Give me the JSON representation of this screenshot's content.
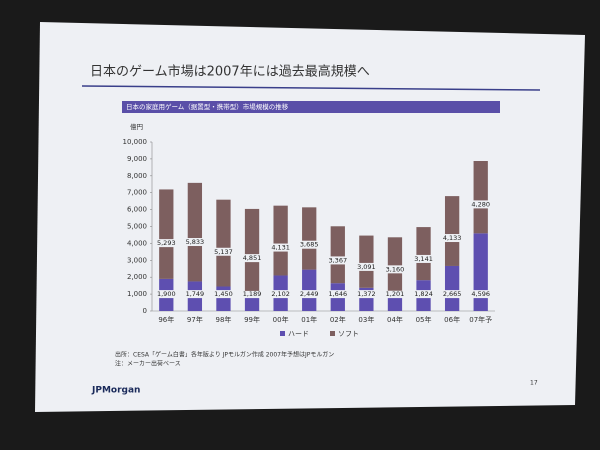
{
  "chart_data": {
    "type": "stacked_bar",
    "title": "日本のゲーム市場は2007年には過去最高規模へ",
    "subtitle": "日本の家庭用ゲーム（据置型・携帯型）市場規模の推移",
    "y_label": "億円",
    "categories": [
      "96年",
      "97年",
      "98年",
      "99年",
      "00年",
      "01年",
      "02年",
      "03年",
      "04年",
      "05年",
      "06年",
      "07年予"
    ],
    "series": [
      {
        "name": "ハード",
        "color": "#5e4fb0",
        "values": [
          1900,
          1749,
          1450,
          1189,
          2102,
          2449,
          1646,
          1372,
          1201,
          1824,
          2665,
          4596
        ],
        "value_labels": [
          "1,900",
          "1,749",
          "1,450",
          "1,189",
          "2,102",
          "2,449",
          "1,646",
          "1,372",
          "1,201",
          "1,824",
          "2,665",
          "4,596"
        ]
      },
      {
        "name": "ソフト",
        "color": "#7d5f5f",
        "values": [
          5293,
          5833,
          5137,
          4851,
          4131,
          3685,
          3367,
          3091,
          3160,
          3141,
          4133,
          4280
        ],
        "value_labels": [
          "5,293",
          "5,833",
          "5,137",
          "4,851",
          "4,131",
          "3,685",
          "3,367",
          "3,091",
          "3,160",
          "3,141",
          "4,133",
          "4,280"
        ]
      }
    ],
    "ylim": [
      0,
      10000
    ],
    "yticks": [
      0,
      {
        "value": 1000,
        "label": "1,000"
      },
      {
        "value": 2000,
        "label": "2,000"
      },
      {
        "value": 3000,
        "label": "3,000"
      },
      {
        "value": 4000,
        "label": "4,000"
      },
      {
        "value": 5000,
        "label": "5,000"
      },
      {
        "value": 6000,
        "label": "6,000"
      },
      {
        "value": 7000,
        "label": "7,000"
      },
      {
        "value": 8000,
        "label": "8,000"
      },
      {
        "value": 9000,
        "label": "9,000"
      },
      {
        "value": 10000,
        "label": "10,000"
      }
    ],
    "legend": "bottom",
    "source": "出所：CESA「ゲーム白書」各年版より JPモルガン作成 2007年予想はJPモルガン",
    "note": "注：メーカー出荷ベース",
    "logo": "JPMorgan",
    "page_number": "17"
  }
}
